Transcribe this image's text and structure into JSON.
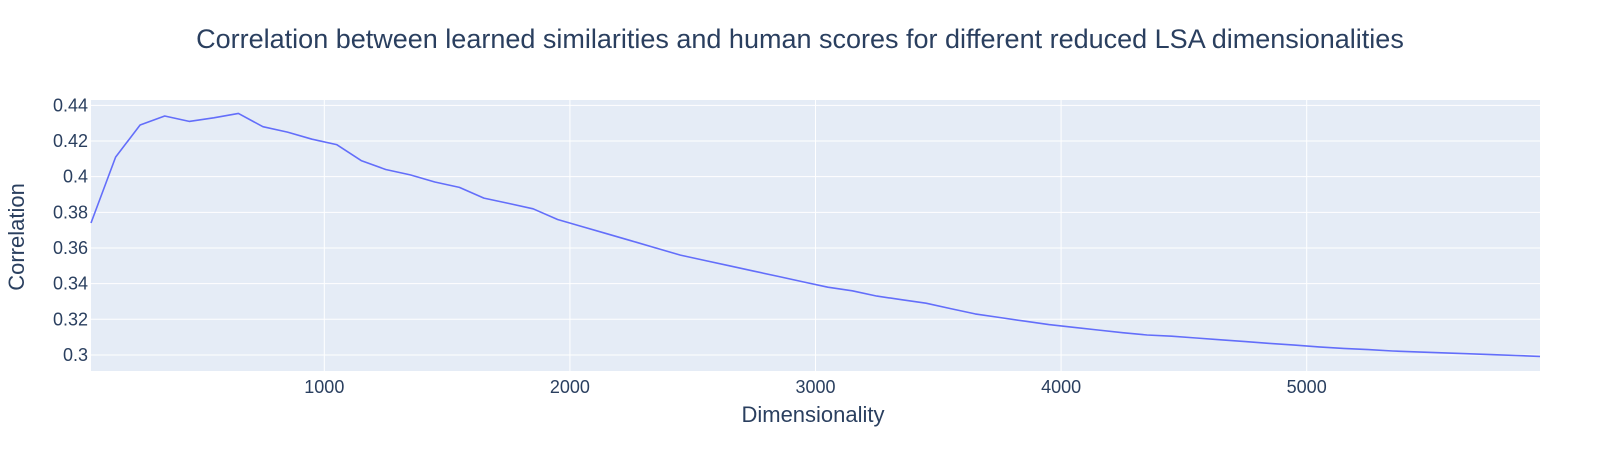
{
  "chart_data": {
    "type": "line",
    "title": "Correlation between learned similarities and human scores for different reduced LSA dimensionalities",
    "xlabel": "Dimensionality",
    "ylabel": "Correlation",
    "xlim": [
      50,
      5950
    ],
    "ylim": [
      0.291,
      0.443
    ],
    "x_ticks": [
      1000,
      2000,
      3000,
      4000,
      5000
    ],
    "x_tick_labels": [
      "1000",
      "2000",
      "3000",
      "4000",
      "5000"
    ],
    "y_ticks": [
      0.3,
      0.32,
      0.34,
      0.36,
      0.38,
      0.4,
      0.42,
      0.44
    ],
    "y_tick_labels": [
      "0.3",
      "0.32",
      "0.34",
      "0.36",
      "0.38",
      "0.4",
      "0.42",
      "0.44"
    ],
    "grid": true,
    "legend": "none",
    "colors": {
      "line": "#636efa",
      "plot_bg": "#e5ecf6",
      "grid": "#ffffff",
      "text": "#2a3f5f"
    },
    "series": [
      {
        "x": [
          50,
          150,
          250,
          350,
          450,
          550,
          650,
          750,
          850,
          950,
          1050,
          1150,
          1250,
          1350,
          1450,
          1550,
          1650,
          1750,
          1850,
          1950,
          2050,
          2150,
          2250,
          2350,
          2450,
          2550,
          2650,
          2750,
          2850,
          2950,
          3050,
          3150,
          3250,
          3350,
          3450,
          3550,
          3650,
          3750,
          3850,
          3950,
          4050,
          4150,
          4250,
          4350,
          4450,
          4550,
          4650,
          4750,
          4850,
          4950,
          5050,
          5150,
          5250,
          5350,
          5450,
          5550,
          5650,
          5750,
          5850,
          5950
        ],
        "values": [
          0.374,
          0.411,
          0.429,
          0.434,
          0.431,
          0.433,
          0.4355,
          0.428,
          0.425,
          0.421,
          0.418,
          0.409,
          0.404,
          0.401,
          0.397,
          0.394,
          0.388,
          0.385,
          0.382,
          0.376,
          0.372,
          0.368,
          0.364,
          0.36,
          0.356,
          0.353,
          0.35,
          0.347,
          0.344,
          0.341,
          0.338,
          0.336,
          0.333,
          0.331,
          0.329,
          0.326,
          0.323,
          0.321,
          0.319,
          0.317,
          0.3155,
          0.314,
          0.3125,
          0.3112,
          0.3105,
          0.3095,
          0.3085,
          0.3075,
          0.3065,
          0.3055,
          0.3045,
          0.3037,
          0.303,
          0.3022,
          0.3017,
          0.3012,
          0.3007,
          0.3002,
          0.2997,
          0.2992
        ]
      }
    ]
  }
}
